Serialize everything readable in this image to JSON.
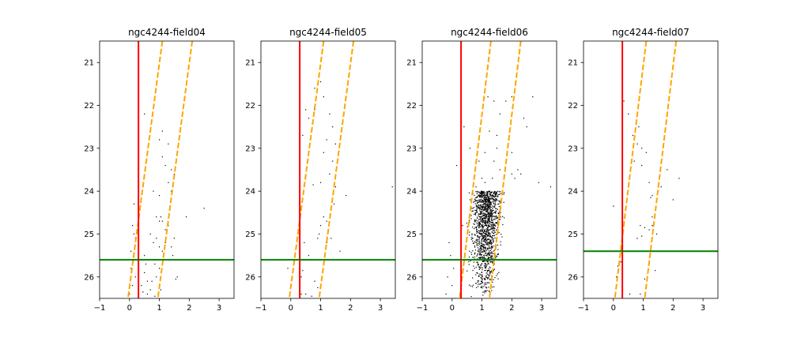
{
  "colors": {
    "reference_line": "#ff0000",
    "selection_band": "#ffa500",
    "limit_line": "#008000",
    "points": "#000000"
  },
  "chart_data": [
    {
      "type": "scatter",
      "title": "ngc4244-field04",
      "xlim": [
        -1,
        3.5
      ],
      "ylim": [
        26.5,
        20.5
      ],
      "y_inverted": true,
      "xticks": [
        -1,
        0,
        1,
        2,
        3
      ],
      "yticks": [
        21,
        22,
        23,
        24,
        25,
        26
      ],
      "grid": false,
      "vertical_line_x": 0.3,
      "limit_line_y": 25.6,
      "band_lines": [
        {
          "x_at_top": 1.1,
          "x_at_bottom": -0.05
        },
        {
          "x_at_top": 2.1,
          "x_at_bottom": 0.95
        }
      ],
      "points": [
        [
          0.5,
          22.2
        ],
        [
          1.0,
          22.8
        ],
        [
          1.1,
          22.6
        ],
        [
          1.3,
          22.9
        ],
        [
          1.1,
          23.2
        ],
        [
          1.2,
          23.4
        ],
        [
          1.4,
          23.5
        ],
        [
          1.5,
          23.6
        ],
        [
          1.3,
          23.8
        ],
        [
          0.8,
          24.0
        ],
        [
          1.0,
          24.1
        ],
        [
          1.4,
          24.0
        ],
        [
          0.15,
          24.3
        ],
        [
          0.9,
          24.6
        ],
        [
          1.0,
          24.7
        ],
        [
          1.05,
          24.6
        ],
        [
          1.1,
          24.7
        ],
        [
          1.2,
          24.9
        ],
        [
          1.3,
          24.8
        ],
        [
          1.9,
          24.6
        ],
        [
          2.5,
          24.4
        ],
        [
          0.1,
          24.8
        ],
        [
          0.15,
          25.0
        ],
        [
          0.2,
          25.1
        ],
        [
          0.3,
          25.3
        ],
        [
          0.7,
          25.0
        ],
        [
          0.8,
          25.2
        ],
        [
          0.9,
          25.1
        ],
        [
          1.0,
          25.3
        ],
        [
          1.1,
          25.4
        ],
        [
          1.2,
          25.2
        ],
        [
          1.4,
          25.3
        ],
        [
          1.5,
          25.1
        ],
        [
          0.05,
          25.4
        ],
        [
          0.2,
          25.6
        ],
        [
          0.5,
          25.5
        ],
        [
          0.7,
          25.6
        ],
        [
          0.85,
          25.7
        ],
        [
          1.0,
          25.8
        ],
        [
          1.2,
          25.6
        ],
        [
          1.45,
          25.5
        ],
        [
          1.6,
          26.0
        ],
        [
          1.55,
          26.05
        ],
        [
          0.05,
          25.8
        ],
        [
          0.2,
          26.0
        ],
        [
          0.1,
          26.2
        ],
        [
          0.5,
          25.9
        ],
        [
          0.6,
          26.1
        ],
        [
          0.4,
          26.2
        ],
        [
          0.7,
          26.3
        ],
        [
          0.9,
          26.0
        ],
        [
          1.0,
          26.2
        ],
        [
          0.0,
          26.4
        ],
        [
          0.45,
          26.35
        ],
        [
          0.75,
          26.1
        ],
        [
          0.6,
          26.4
        ],
        [
          0.85,
          26.45
        ],
        [
          1.05,
          26.3
        ],
        [
          0.3,
          26.1
        ],
        [
          0.55,
          25.7
        ]
      ]
    },
    {
      "type": "scatter",
      "title": "ngc4244-field05",
      "xlim": [
        -1,
        3.5
      ],
      "ylim": [
        26.5,
        20.5
      ],
      "y_inverted": true,
      "xticks": [
        -1,
        0,
        1,
        2,
        3
      ],
      "yticks": [
        21,
        22,
        23,
        24,
        25,
        26
      ],
      "grid": false,
      "vertical_line_x": 0.3,
      "limit_line_y": 25.6,
      "band_lines": [
        {
          "x_at_top": 1.1,
          "x_at_bottom": -0.05
        },
        {
          "x_at_top": 2.1,
          "x_at_bottom": 0.95
        }
      ],
      "points": [
        [
          0.8,
          21.6
        ],
        [
          1.0,
          21.45
        ],
        [
          1.1,
          21.8
        ],
        [
          0.5,
          22.1
        ],
        [
          0.6,
          22.3
        ],
        [
          0.8,
          22.1
        ],
        [
          1.3,
          22.2
        ],
        [
          1.4,
          22.5
        ],
        [
          1.2,
          22.8
        ],
        [
          1.5,
          22.9
        ],
        [
          1.1,
          23.1
        ],
        [
          1.4,
          23.3
        ],
        [
          1.3,
          23.6
        ],
        [
          1.0,
          23.8
        ],
        [
          1.5,
          23.9
        ],
        [
          0.75,
          23.85
        ],
        [
          1.85,
          24.1
        ],
        [
          1.45,
          24.3
        ],
        [
          1.1,
          24.6
        ],
        [
          1.0,
          24.8
        ],
        [
          1.2,
          24.7
        ],
        [
          0.95,
          25.0
        ],
        [
          0.9,
          25.1
        ],
        [
          0.45,
          25.2
        ],
        [
          1.35,
          25.1
        ],
        [
          1.65,
          25.4
        ],
        [
          1.2,
          25.2
        ],
        [
          0.6,
          25.5
        ],
        [
          0.8,
          25.6
        ],
        [
          0.4,
          25.85
        ],
        [
          0.35,
          26.0
        ],
        [
          0.8,
          26.1
        ],
        [
          0.9,
          26.25
        ],
        [
          0.3,
          26.3
        ],
        [
          0.5,
          26.4
        ],
        [
          0.7,
          26.45
        ],
        [
          -0.1,
          25.8
        ],
        [
          3.4,
          23.9
        ],
        [
          0.35,
          26.4
        ],
        [
          0.4,
          22.7
        ]
      ]
    },
    {
      "type": "scatter",
      "title": "ngc4244-field06",
      "xlim": [
        -1,
        3.5
      ],
      "ylim": [
        26.5,
        20.5
      ],
      "y_inverted": true,
      "xticks": [
        -1,
        0,
        1,
        2,
        3
      ],
      "yticks": [
        21,
        22,
        23,
        24,
        25,
        26
      ],
      "grid": false,
      "vertical_line_x": 0.3,
      "limit_line_y": 25.6,
      "band_lines": [
        {
          "x_at_top": 1.3,
          "x_at_bottom": 0.25
        },
        {
          "x_at_top": 2.3,
          "x_at_bottom": 1.25
        }
      ],
      "dense_cloud": {
        "count": 1400,
        "y_range": [
          24.0,
          26.5
        ],
        "seed": 7
      },
      "points": [
        [
          1.2,
          21.8
        ],
        [
          2.0,
          21.8
        ],
        [
          2.7,
          21.8
        ],
        [
          1.4,
          21.9
        ],
        [
          1.8,
          21.9
        ],
        [
          1.6,
          22.2
        ],
        [
          2.4,
          22.3
        ],
        [
          2.5,
          22.5
        ],
        [
          0.4,
          22.5
        ],
        [
          1.25,
          22.6
        ],
        [
          1.5,
          22.7
        ],
        [
          0.6,
          23.0
        ],
        [
          1.5,
          23.0
        ],
        [
          1.1,
          23.1
        ],
        [
          2.0,
          23.1
        ],
        [
          0.9,
          23.3
        ],
        [
          1.4,
          23.3
        ],
        [
          1.6,
          23.5
        ],
        [
          2.0,
          23.6
        ],
        [
          2.1,
          23.7
        ],
        [
          2.2,
          23.5
        ],
        [
          2.3,
          23.6
        ],
        [
          1.0,
          23.7
        ],
        [
          1.1,
          23.8
        ],
        [
          1.35,
          23.7
        ],
        [
          0.8,
          23.9
        ],
        [
          0.9,
          24.1
        ],
        [
          1.0,
          24.0
        ],
        [
          0.6,
          24.2
        ],
        [
          0.7,
          24.4
        ],
        [
          2.9,
          23.8
        ],
        [
          3.3,
          23.9
        ],
        [
          0.15,
          23.4
        ],
        [
          0.3,
          24.6
        ],
        [
          0.35,
          24.8
        ],
        [
          -0.1,
          25.2
        ],
        [
          -0.05,
          25.5
        ],
        [
          0.05,
          25.8
        ],
        [
          -0.15,
          26.0
        ],
        [
          0.0,
          26.2
        ],
        [
          -0.2,
          26.4
        ],
        [
          0.1,
          26.5
        ]
      ]
    },
    {
      "type": "scatter",
      "title": "ngc4244-field07",
      "xlim": [
        -1,
        3.5
      ],
      "ylim": [
        26.5,
        20.5
      ],
      "y_inverted": true,
      "xticks": [
        -1,
        0,
        1,
        2,
        3
      ],
      "yticks": [
        21,
        22,
        23,
        24,
        25,
        26
      ],
      "grid": false,
      "vertical_line_x": 0.3,
      "limit_line_y": 25.4,
      "band_lines": [
        {
          "x_at_top": 1.1,
          "x_at_bottom": 0.05
        },
        {
          "x_at_top": 2.1,
          "x_at_bottom": 1.05
        }
      ],
      "points": [
        [
          0.35,
          21.9
        ],
        [
          0.5,
          22.2
        ],
        [
          0.85,
          22.5
        ],
        [
          0.65,
          22.7
        ],
        [
          0.8,
          22.9
        ],
        [
          0.95,
          23.0
        ],
        [
          1.1,
          23.1
        ],
        [
          0.7,
          23.3
        ],
        [
          0.95,
          23.4
        ],
        [
          1.6,
          23.35
        ],
        [
          1.8,
          23.5
        ],
        [
          2.2,
          23.7
        ],
        [
          1.2,
          23.8
        ],
        [
          1.6,
          23.9
        ],
        [
          1.3,
          24.1
        ],
        [
          1.25,
          24.15
        ],
        [
          2.0,
          24.2
        ],
        [
          0.0,
          24.35
        ],
        [
          1.3,
          24.6
        ],
        [
          0.9,
          24.8
        ],
        [
          1.05,
          24.85
        ],
        [
          1.2,
          24.9
        ],
        [
          1.3,
          24.8
        ],
        [
          0.95,
          25.05
        ],
        [
          0.8,
          25.1
        ],
        [
          1.45,
          25.0
        ],
        [
          0.25,
          25.65
        ],
        [
          0.15,
          25.75
        ],
        [
          1.2,
          25.7
        ],
        [
          1.4,
          25.85
        ],
        [
          0.1,
          26.0
        ],
        [
          1.05,
          26.05
        ],
        [
          0.55,
          26.4
        ],
        [
          0.9,
          26.4
        ]
      ]
    }
  ]
}
